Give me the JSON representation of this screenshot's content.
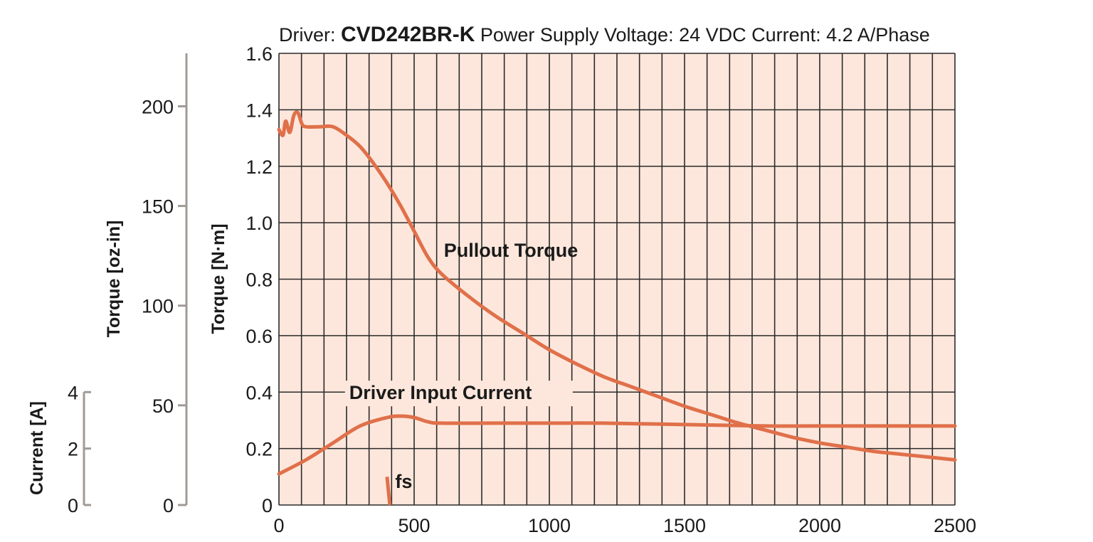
{
  "header": {
    "prefix": "Driver: ",
    "driver": "CVD242BR-K",
    "rest": "  Power Supply Voltage: 24 VDC  Current: 4.2 A/Phase"
  },
  "colors": {
    "plot_bg": "#fde7dc",
    "grid": "#2a2a2a",
    "curve": "#e0704a",
    "axis_gray": "#a09a96"
  },
  "chart_data": {
    "type": "line",
    "x": {
      "ticks": [
        0,
        500,
        1000,
        1500,
        2000,
        2500
      ],
      "tick_labels": [
        "0",
        "500",
        "1000",
        "1500",
        "2000",
        "2500"
      ],
      "lim": [
        0,
        2500
      ],
      "grid_step": 83.33
    },
    "y_torque_nm": {
      "label": "Torque [N·m]",
      "lim": [
        0,
        1.6
      ],
      "ticks": [
        0,
        0.2,
        0.4,
        0.6,
        0.8,
        1.0,
        1.2,
        1.4,
        1.6
      ],
      "tick_labels": [
        "0",
        "0.2",
        "0.4",
        "0.6",
        "0.8",
        "1.0",
        "1.2",
        "1.4",
        "1.6"
      ]
    },
    "y_torque_ozin": {
      "label": "Torque [oz-in]",
      "lim": [
        0,
        226.6
      ],
      "ticks": [
        0,
        50,
        100,
        150,
        200
      ],
      "tick_labels": [
        "0",
        "50",
        "100",
        "150",
        "200"
      ]
    },
    "y_current": {
      "label": "Current [A]",
      "lim": [
        0,
        4
      ],
      "ticks": [
        0,
        2,
        4
      ],
      "tick_labels": [
        "0",
        "2",
        "4"
      ]
    },
    "grid": true,
    "series": [
      {
        "name": "Pullout Torque",
        "axis": "torque_nm",
        "points": [
          [
            0,
            1.33
          ],
          [
            15,
            1.31
          ],
          [
            25,
            1.36
          ],
          [
            40,
            1.32
          ],
          [
            55,
            1.38
          ],
          [
            70,
            1.39
          ],
          [
            85,
            1.35
          ],
          [
            100,
            1.34
          ],
          [
            150,
            1.34
          ],
          [
            200,
            1.34
          ],
          [
            250,
            1.31
          ],
          [
            300,
            1.27
          ],
          [
            350,
            1.21
          ],
          [
            400,
            1.14
          ],
          [
            450,
            1.06
          ],
          [
            500,
            0.97
          ],
          [
            550,
            0.88
          ],
          [
            600,
            0.82
          ],
          [
            700,
            0.74
          ],
          [
            800,
            0.67
          ],
          [
            900,
            0.61
          ],
          [
            1000,
            0.55
          ],
          [
            1100,
            0.5
          ],
          [
            1200,
            0.455
          ],
          [
            1300,
            0.42
          ],
          [
            1400,
            0.385
          ],
          [
            1500,
            0.35
          ],
          [
            1600,
            0.32
          ],
          [
            1700,
            0.29
          ],
          [
            1800,
            0.265
          ],
          [
            1900,
            0.24
          ],
          [
            2000,
            0.22
          ],
          [
            2100,
            0.205
          ],
          [
            2200,
            0.19
          ],
          [
            2300,
            0.18
          ],
          [
            2400,
            0.17
          ],
          [
            2500,
            0.16
          ]
        ]
      },
      {
        "name": "Driver Input Current",
        "axis": "torque_nm",
        "points": [
          [
            0,
            0.11
          ],
          [
            100,
            0.16
          ],
          [
            200,
            0.22
          ],
          [
            300,
            0.28
          ],
          [
            400,
            0.31
          ],
          [
            450,
            0.315
          ],
          [
            500,
            0.31
          ],
          [
            550,
            0.295
          ],
          [
            600,
            0.29
          ],
          [
            800,
            0.29
          ],
          [
            1000,
            0.29
          ],
          [
            1200,
            0.29
          ],
          [
            1500,
            0.285
          ],
          [
            1800,
            0.28
          ],
          [
            2000,
            0.28
          ],
          [
            2500,
            0.28
          ]
        ]
      }
    ],
    "annotations": [
      {
        "text": "Pullout Torque",
        "x": 610,
        "y": 0.88
      },
      {
        "text": "Driver Input Current",
        "x": 260,
        "y": 0.375
      },
      {
        "text": "fs",
        "x": 430,
        "y": 0.06
      }
    ],
    "fs_marker": {
      "x": 405,
      "y_range": [
        0,
        0.1
      ]
    }
  }
}
